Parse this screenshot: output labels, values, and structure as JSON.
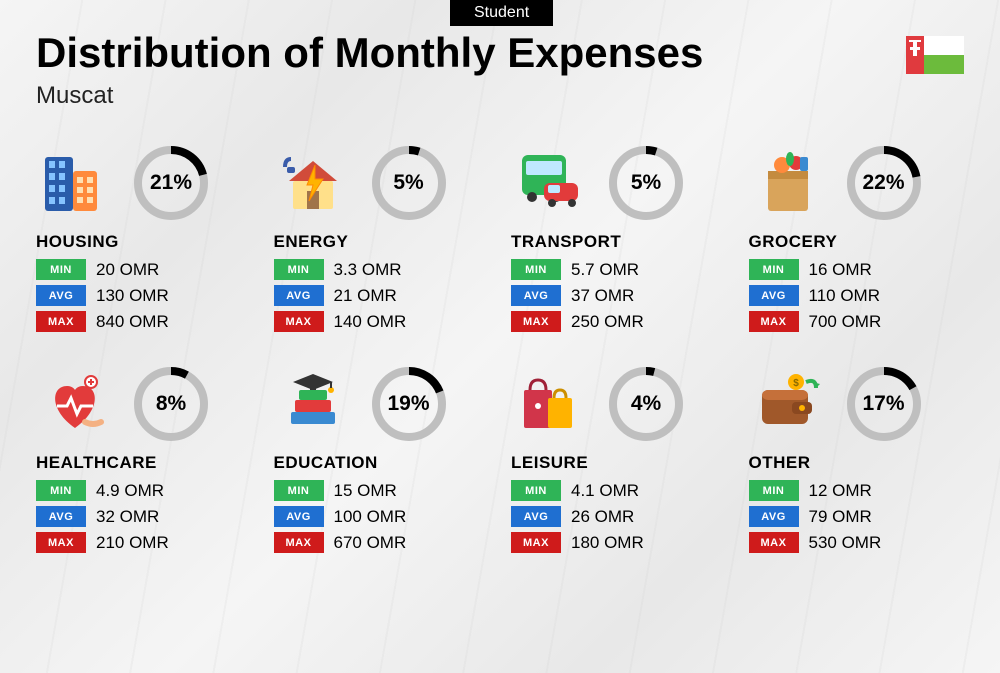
{
  "badge": "Student",
  "title": "Distribution of Monthly Expenses",
  "subtitle": "Muscat",
  "currency_suffix": "OMR",
  "flag": {
    "red": "#e03a3e",
    "white": "#ffffff",
    "green": "#6cbb3c"
  },
  "chip_colors": {
    "min": "#2fb457",
    "avg": "#1f6fd1",
    "max": "#cf1b1b"
  },
  "ring": {
    "track_color": "#bfbfbf",
    "progress_color": "#000000",
    "stroke_width": 8,
    "radius": 33
  },
  "labels": {
    "min": "MIN",
    "avg": "AVG",
    "max": "MAX"
  },
  "categories": [
    {
      "key": "housing",
      "name": "HOUSING",
      "pct": 21,
      "min": "20",
      "avg": "130",
      "max": "840",
      "icon": "buildings"
    },
    {
      "key": "energy",
      "name": "ENERGY",
      "pct": 5,
      "min": "3.3",
      "avg": "21",
      "max": "140",
      "icon": "energy-house"
    },
    {
      "key": "transport",
      "name": "TRANSPORT",
      "pct": 5,
      "min": "5.7",
      "avg": "37",
      "max": "250",
      "icon": "bus-car"
    },
    {
      "key": "grocery",
      "name": "GROCERY",
      "pct": 22,
      "min": "16",
      "avg": "110",
      "max": "700",
      "icon": "grocery-bag"
    },
    {
      "key": "healthcare",
      "name": "HEALTHCARE",
      "pct": 8,
      "min": "4.9",
      "avg": "32",
      "max": "210",
      "icon": "heart-health"
    },
    {
      "key": "education",
      "name": "EDUCATION",
      "pct": 19,
      "min": "15",
      "avg": "100",
      "max": "670",
      "icon": "grad-books"
    },
    {
      "key": "leisure",
      "name": "LEISURE",
      "pct": 4,
      "min": "4.1",
      "avg": "26",
      "max": "180",
      "icon": "shopping-bags"
    },
    {
      "key": "other",
      "name": "OTHER",
      "pct": 17,
      "min": "12",
      "avg": "79",
      "max": "530",
      "icon": "wallet"
    }
  ]
}
